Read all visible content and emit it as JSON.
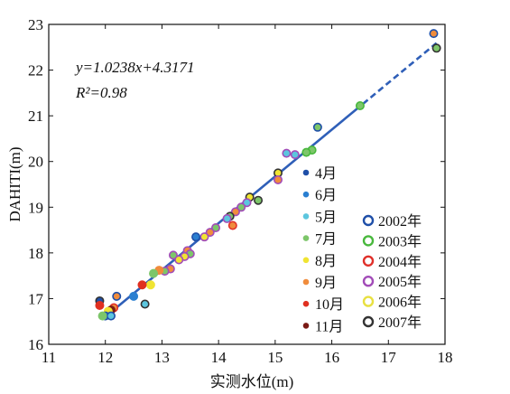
{
  "chart_data": {
    "type": "scatter",
    "xlabel": "实测水位(m)",
    "ylabel": "DAHITI(m)",
    "xlim": [
      11,
      18
    ],
    "ylim": [
      16,
      23
    ],
    "xticks": [
      11,
      12,
      13,
      14,
      15,
      16,
      17,
      18
    ],
    "yticks": [
      16,
      17,
      18,
      19,
      20,
      21,
      22,
      23
    ],
    "grid": false,
    "equation": "y=1.0238x+4.3171",
    "r2": "R²=0.98",
    "fit": {
      "slope": 1.0238,
      "intercept": 4.3171,
      "x_range": [
        11.95,
        17.85
      ],
      "dashed_from": 16.55,
      "color": "#2f5fb8"
    },
    "month_legend": [
      {
        "label": "4月",
        "color": "#1f4fa8"
      },
      {
        "label": "6月",
        "color": "#2a7fd1"
      },
      {
        "label": "5月",
        "color": "#5cc6de"
      },
      {
        "label": "7月",
        "color": "#7dc66a"
      },
      {
        "label": "8月",
        "color": "#f0e432"
      },
      {
        "label": "9月",
        "color": "#f08c3c"
      },
      {
        "label": "10月",
        "color": "#e03020"
      },
      {
        "label": "11月",
        "color": "#7a1a14"
      }
    ],
    "year_legend": [
      {
        "label": "2002年",
        "color": "#1f4fa8"
      },
      {
        "label": "2003年",
        "color": "#48b83c"
      },
      {
        "label": "2004年",
        "color": "#e0302a"
      },
      {
        "label": "2005年",
        "color": "#a24cb8"
      },
      {
        "label": "2006年",
        "color": "#e8e040"
      },
      {
        "label": "2007年",
        "color": "#333333"
      }
    ],
    "points": [
      {
        "x": 17.8,
        "y": 22.8,
        "fill": "#f08c3c",
        "edge": "#1f4fa8"
      },
      {
        "x": 17.85,
        "y": 22.48,
        "fill": "#7dc66a",
        "edge": "#333333"
      },
      {
        "x": 16.5,
        "y": 21.22,
        "fill": "#7dc66a",
        "edge": "#48b83c"
      },
      {
        "x": 15.75,
        "y": 20.75,
        "fill": "#7dc66a",
        "edge": "#1f4fa8"
      },
      {
        "x": 15.65,
        "y": 20.25,
        "fill": "#7dc66a",
        "edge": "#48b83c"
      },
      {
        "x": 15.55,
        "y": 20.2,
        "fill": "#7dc66a",
        "edge": "#48b83c"
      },
      {
        "x": 15.2,
        "y": 20.18,
        "fill": "#5cc6de",
        "edge": "#a24cb8"
      },
      {
        "x": 15.35,
        "y": 20.15,
        "fill": "#5cc6de",
        "edge": "#a24cb8"
      },
      {
        "x": 15.05,
        "y": 19.75,
        "fill": "#f0e432",
        "edge": "#333333"
      },
      {
        "x": 15.05,
        "y": 19.6,
        "fill": "#f08c3c",
        "edge": "#a24cb8"
      },
      {
        "x": 14.55,
        "y": 19.22,
        "fill": "#f0e432",
        "edge": "#333333"
      },
      {
        "x": 14.7,
        "y": 19.15,
        "fill": "#7dc66a",
        "edge": "#333333"
      },
      {
        "x": 14.5,
        "y": 19.1,
        "fill": "#5cc6de",
        "edge": "#a24cb8"
      },
      {
        "x": 14.4,
        "y": 19.0,
        "fill": "#7dc66a",
        "edge": "#a24cb8"
      },
      {
        "x": 14.3,
        "y": 18.9,
        "fill": "#f08c3c",
        "edge": "#a24cb8"
      },
      {
        "x": 14.2,
        "y": 18.8,
        "fill": "#7dc66a",
        "edge": "#333333"
      },
      {
        "x": 14.15,
        "y": 18.75,
        "fill": "#5cc6de",
        "edge": "#a24cb8"
      },
      {
        "x": 14.25,
        "y": 18.6,
        "fill": "#f08c3c",
        "edge": "#e0302a"
      },
      {
        "x": 13.95,
        "y": 18.55,
        "fill": "#7dc66a",
        "edge": "#a24cb8"
      },
      {
        "x": 13.85,
        "y": 18.45,
        "fill": "#f08c3c",
        "edge": "#a24cb8"
      },
      {
        "x": 13.75,
        "y": 18.35,
        "fill": "#f0e432",
        "edge": "#a24cb8"
      },
      {
        "x": 13.6,
        "y": 18.35,
        "fill": "#2a7fd1",
        "edge": "#1f4fa8"
      },
      {
        "x": 13.45,
        "y": 18.05,
        "fill": "#f08c3c",
        "edge": "#a24cb8"
      },
      {
        "x": 13.5,
        "y": 17.98,
        "fill": "#7dc66a",
        "edge": "#a24cb8"
      },
      {
        "x": 13.4,
        "y": 17.92,
        "fill": "#f0e432",
        "edge": "#a24cb8"
      },
      {
        "x": 13.2,
        "y": 17.95,
        "fill": "#7dc66a",
        "edge": "#a24cb8"
      },
      {
        "x": 13.3,
        "y": 17.85,
        "fill": "#f0e432",
        "edge": "#a24cb8"
      },
      {
        "x": 13.15,
        "y": 17.65,
        "fill": "#f08c3c",
        "edge": "#a24cb8"
      },
      {
        "x": 13.05,
        "y": 17.6,
        "fill": "#7dc66a",
        "edge": "#a24cb8"
      },
      {
        "x": 12.95,
        "y": 17.62,
        "fill": "#f08c3c",
        "edge": "#f08c3c"
      },
      {
        "x": 12.85,
        "y": 17.55,
        "fill": "#7dc66a",
        "edge": "#7dc66a"
      },
      {
        "x": 12.8,
        "y": 17.3,
        "fill": "#f0e432",
        "edge": "#f0e432"
      },
      {
        "x": 12.65,
        "y": 17.3,
        "fill": "#e03020",
        "edge": "#e03020"
      },
      {
        "x": 12.7,
        "y": 16.88,
        "fill": "#5cc6de",
        "edge": "#333333"
      },
      {
        "x": 12.5,
        "y": 17.05,
        "fill": "#2a7fd1",
        "edge": "#2a7fd1"
      },
      {
        "x": 12.2,
        "y": 17.05,
        "fill": "#f08c3c",
        "edge": "#1f4fa8"
      },
      {
        "x": 12.15,
        "y": 16.8,
        "fill": "#f08c3c",
        "edge": "#e0302a"
      },
      {
        "x": 12.1,
        "y": 16.75,
        "fill": "#7a1a14",
        "edge": "#7a1a14"
      },
      {
        "x": 11.9,
        "y": 16.95,
        "fill": "#1f4fa8",
        "edge": "#333333"
      },
      {
        "x": 11.9,
        "y": 16.85,
        "fill": "#e03020",
        "edge": "#e03020"
      },
      {
        "x": 12.05,
        "y": 16.72,
        "fill": "#f0e432",
        "edge": "#f0e432"
      },
      {
        "x": 12.0,
        "y": 16.62,
        "fill": "#2a7fd1",
        "edge": "#1f4fa8"
      },
      {
        "x": 12.1,
        "y": 16.62,
        "fill": "#5cc6de",
        "edge": "#1f4fa8"
      },
      {
        "x": 11.95,
        "y": 16.62,
        "fill": "#7dc66a",
        "edge": "#7dc66a"
      }
    ]
  }
}
